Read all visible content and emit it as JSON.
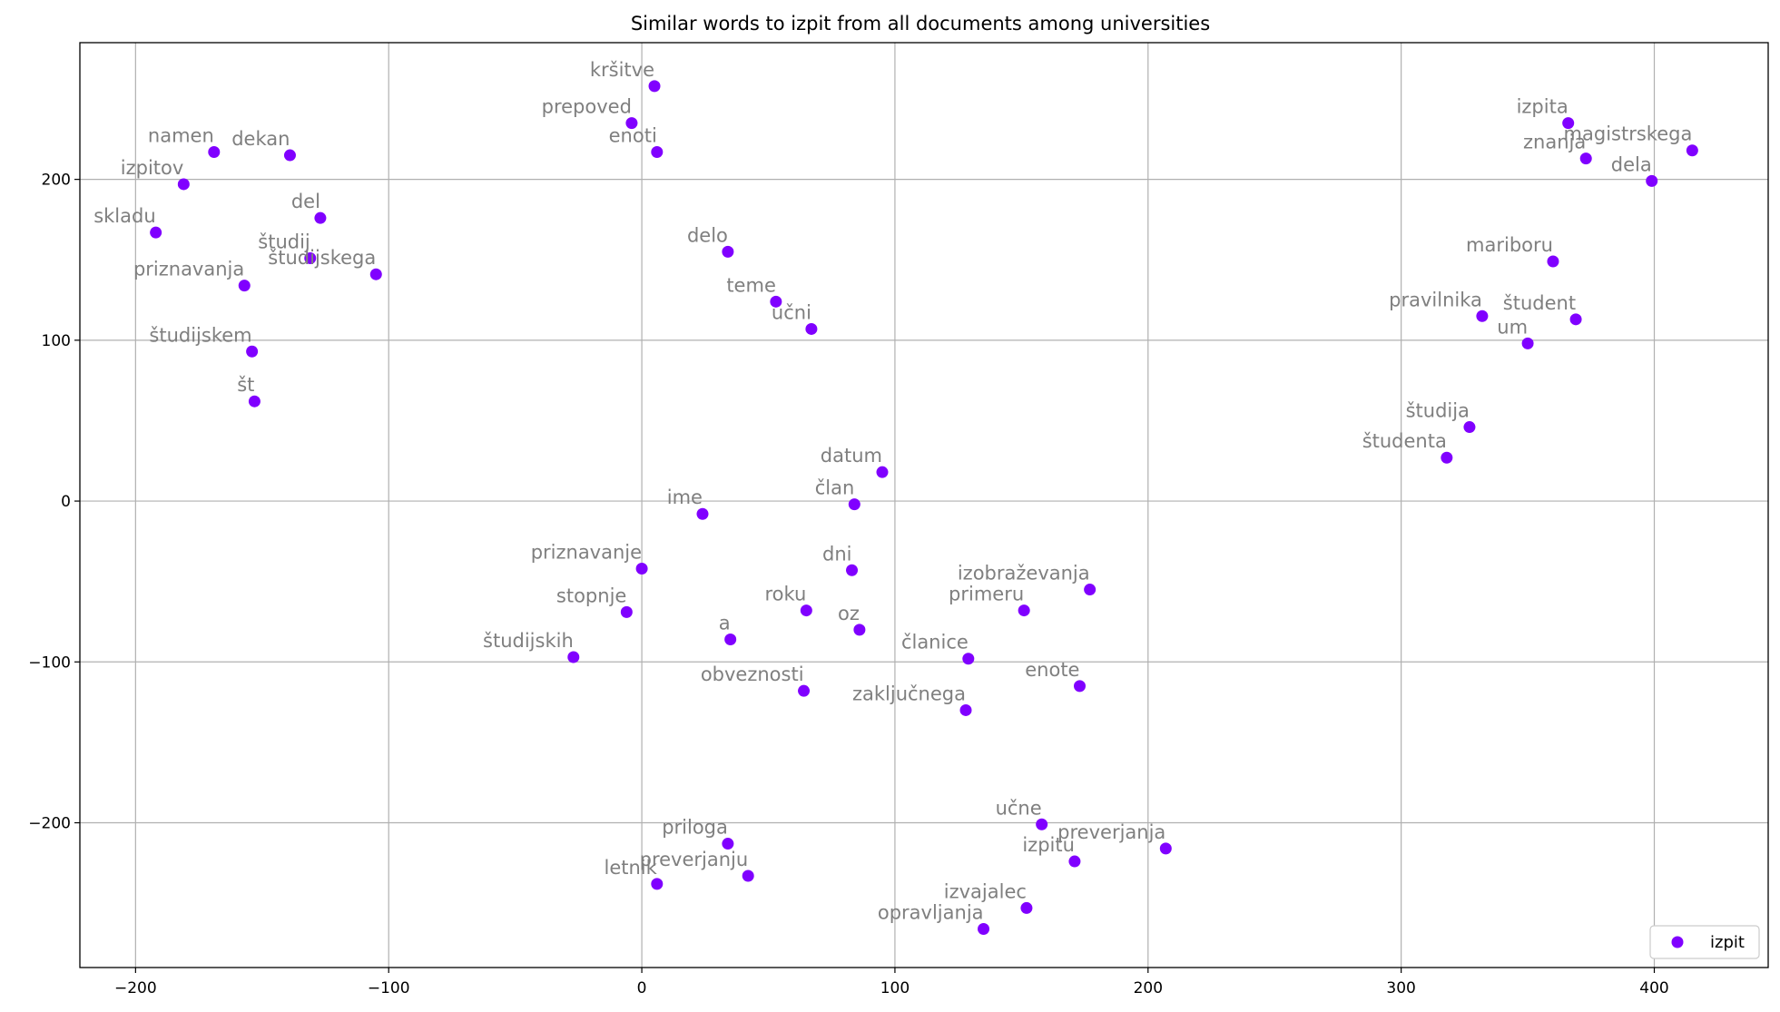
{
  "chart_data": {
    "type": "scatter",
    "title": "Similar words to izpit from all documents among universities",
    "xlabel": "",
    "ylabel": "",
    "xlim": [
      -222,
      445
    ],
    "ylim": [
      -290,
      285
    ],
    "xticks": [
      -200,
      -100,
      0,
      100,
      200,
      300,
      400
    ],
    "yticks": [
      -200,
      -100,
      0,
      100,
      200
    ],
    "xtick_labels": [
      "−200",
      "−100",
      "0",
      "100",
      "200",
      "300",
      "400"
    ],
    "ytick_labels": [
      "−200",
      "−100",
      "0",
      "100",
      "200"
    ],
    "grid": true,
    "legend_position": "lower-right",
    "series": [
      {
        "name": "izpit",
        "color": "#8000ff",
        "points": [
          {
            "word": "kršitve",
            "x": 5,
            "y": 258
          },
          {
            "word": "prepoved",
            "x": -4,
            "y": 235
          },
          {
            "word": "enoti",
            "x": 6,
            "y": 217
          },
          {
            "word": "namen",
            "x": -169,
            "y": 217
          },
          {
            "word": "dekan",
            "x": -139,
            "y": 215
          },
          {
            "word": "izpitov",
            "x": -181,
            "y": 197
          },
          {
            "word": "skladu",
            "x": -192,
            "y": 167
          },
          {
            "word": "del",
            "x": -127,
            "y": 176
          },
          {
            "word": "študij",
            "x": -131,
            "y": 151
          },
          {
            "word": "študijskega",
            "x": -105,
            "y": 141
          },
          {
            "word": "priznavanja",
            "x": -157,
            "y": 134
          },
          {
            "word": "študijskem",
            "x": -154,
            "y": 93
          },
          {
            "word": "št",
            "x": -153,
            "y": 62
          },
          {
            "word": "delo",
            "x": 34,
            "y": 155
          },
          {
            "word": "teme",
            "x": 53,
            "y": 124
          },
          {
            "word": "učni",
            "x": 67,
            "y": 107
          },
          {
            "word": "datum",
            "x": 95,
            "y": 18
          },
          {
            "word": "član",
            "x": 84,
            "y": -2
          },
          {
            "word": "ime",
            "x": 24,
            "y": -8
          },
          {
            "word": "priznavanje",
            "x": 0,
            "y": -42
          },
          {
            "word": "dni",
            "x": 83,
            "y": -43
          },
          {
            "word": "stopnje",
            "x": -6,
            "y": -69
          },
          {
            "word": "roku",
            "x": 65,
            "y": -68
          },
          {
            "word": "oz",
            "x": 86,
            "y": -80
          },
          {
            "word": "a",
            "x": 35,
            "y": -86
          },
          {
            "word": "študijskih",
            "x": -27,
            "y": -97
          },
          {
            "word": "obveznosti",
            "x": 64,
            "y": -118
          },
          {
            "word": "izobraževanja",
            "x": 177,
            "y": -55
          },
          {
            "word": "primeru",
            "x": 151,
            "y": -68
          },
          {
            "word": "članice",
            "x": 129,
            "y": -98
          },
          {
            "word": "enote",
            "x": 173,
            "y": -115
          },
          {
            "word": "zaključnega",
            "x": 128,
            "y": -130
          },
          {
            "word": "učne",
            "x": 158,
            "y": -201
          },
          {
            "word": "preverjanja",
            "x": 207,
            "y": -216
          },
          {
            "word": "izpitu",
            "x": 171,
            "y": -224
          },
          {
            "word": "priloga",
            "x": 34,
            "y": -213
          },
          {
            "word": "preverjanju",
            "x": 42,
            "y": -233
          },
          {
            "word": "letnik",
            "x": 6,
            "y": -238
          },
          {
            "word": "izvajalec",
            "x": 152,
            "y": -253
          },
          {
            "word": "opravljanja",
            "x": 135,
            "y": -266
          },
          {
            "word": "izpita",
            "x": 366,
            "y": 235
          },
          {
            "word": "magistrskega",
            "x": 415,
            "y": 218
          },
          {
            "word": "znanja",
            "x": 373,
            "y": 213
          },
          {
            "word": "dela",
            "x": 399,
            "y": 199
          },
          {
            "word": "mariboru",
            "x": 360,
            "y": 149
          },
          {
            "word": "pravilnika",
            "x": 332,
            "y": 115
          },
          {
            "word": "študent",
            "x": 369,
            "y": 113
          },
          {
            "word": "um",
            "x": 350,
            "y": 98
          },
          {
            "word": "študija",
            "x": 327,
            "y": 46
          },
          {
            "word": "študenta",
            "x": 318,
            "y": 27
          }
        ]
      }
    ]
  }
}
